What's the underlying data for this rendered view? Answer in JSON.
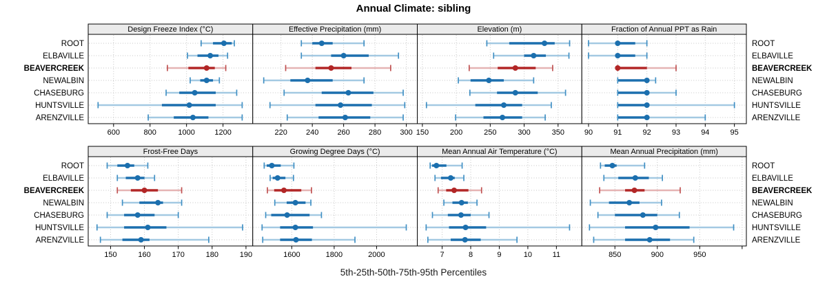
{
  "title": "Annual Climate: sibling",
  "caption": "5th-25th-50th-75th-95th Percentiles",
  "sites": [
    "ROOT",
    "ELBAVILLE",
    "BEAVERCREEK",
    "NEWALBIN",
    "CHASEBURG",
    "HUNTSVILLE",
    "ARENZVILLE"
  ],
  "highlighted_site": "BEAVERCREEK",
  "colors": {
    "series_dark": "#1b6fae",
    "series_mid": "#4190c4",
    "series_light": "#a3c9e2",
    "highlight_dark": "#b22626",
    "highlight_mid": "#c05252",
    "highlight_light": "#e5b3b3",
    "strip_bg": "#ebebeb",
    "panel_border": "#000000",
    "grid": "#c4c4c4",
    "text": "#000000"
  },
  "chart_data": {
    "type": "dotplot-intervals",
    "percentiles": [
      5,
      25,
      50,
      75,
      95
    ],
    "legend_note": "5th-25th-50th-75th-95th Percentiles",
    "panels": [
      {
        "title": "Design Freeze Index (°C)",
        "row": 0,
        "col": 0,
        "xlim": [
          461,
          1363
        ],
        "ticks": [
          600,
          800,
          1000,
          1200
        ],
        "unlabeled_ticks": [],
        "series": [
          {
            "site": "ROOT",
            "values": [
              1080,
              1145,
              1205,
              1248,
              1262
            ]
          },
          {
            "site": "ELBAVILLE",
            "values": [
              1005,
              1060,
              1130,
              1175,
              1225
            ]
          },
          {
            "site": "BEAVERCREEK",
            "values": [
              895,
              1010,
              1110,
              1155,
              1215
            ]
          },
          {
            "site": "NEWALBIN",
            "values": [
              1020,
              1075,
              1110,
              1145,
              1180
            ]
          },
          {
            "site": "CHASEBURG",
            "values": [
              888,
              960,
              1045,
              1160,
              1275
            ]
          },
          {
            "site": "HUNTSVILLE",
            "values": [
              515,
              865,
              1015,
              1160,
              1305
            ]
          },
          {
            "site": "ARENZVILLE",
            "values": [
              790,
              930,
              1035,
              1120,
              1305
            ]
          }
        ]
      },
      {
        "title": "Effective Precipitation (mm)",
        "row": 0,
        "col": 1,
        "xlim": [
          202,
          307
        ],
        "ticks": [
          220,
          240,
          260,
          280,
          300
        ],
        "unlabeled_ticks": [],
        "series": [
          {
            "site": "ROOT",
            "values": [
              233,
              240,
              246,
              253,
              273
            ]
          },
          {
            "site": "ELBAVILLE",
            "values": [
              233,
              252,
              260,
              276,
              295
            ]
          },
          {
            "site": "BEAVERCREEK",
            "values": [
              223,
              242,
              252,
              265,
              290
            ]
          },
          {
            "site": "NEWALBIN",
            "values": [
              209,
              226,
              237,
              253,
              273
            ]
          },
          {
            "site": "CHASEBURG",
            "values": [
              222,
              246,
              263,
              279,
              298
            ]
          },
          {
            "site": "HUNTSVILLE",
            "values": [
              213,
              242,
              258,
              278,
              299
            ]
          },
          {
            "site": "ARENZVILLE",
            "values": [
              224,
              244,
              261,
              277,
              298
            ]
          }
        ]
      },
      {
        "title": "Elevation (m)",
        "row": 0,
        "col": 2,
        "xlim": [
          142.5,
          385
        ],
        "ticks": [
          150,
          200,
          250,
          300,
          350
        ],
        "unlabeled_ticks": [],
        "series": [
          {
            "site": "ROOT",
            "values": [
              245,
              278,
              330,
              345,
              367
            ]
          },
          {
            "site": "ELBAVILLE",
            "values": [
              255,
              300,
              314,
              332,
              366
            ]
          },
          {
            "site": "BEAVERCREEK",
            "values": [
              219,
              261,
              287,
              317,
              342
            ]
          },
          {
            "site": "NEWALBIN",
            "values": [
              203,
              221,
              248,
              270,
              314
            ]
          },
          {
            "site": "CHASEBURG",
            "values": [
              220,
              260,
              287,
              320,
              361
            ]
          },
          {
            "site": "HUNTSVILLE",
            "values": [
              156,
              228,
              270,
              297,
              340
            ]
          },
          {
            "site": "ARENZVILLE",
            "values": [
              199,
              240,
              268,
              297,
              331
            ]
          }
        ]
      },
      {
        "title": "Fraction of Annual PPT as Rain",
        "row": 0,
        "col": 3,
        "xlim": [
          89.77,
          95.41
        ],
        "ticks": [
          90,
          91,
          92,
          93,
          94,
          95
        ],
        "unlabeled_ticks": [],
        "series": [
          {
            "site": "ROOT",
            "values": [
              90,
              91,
              91,
              91.6,
              92
            ]
          },
          {
            "site": "ELBAVILLE",
            "values": [
              90,
              91,
              91,
              91.6,
              92
            ]
          },
          {
            "site": "BEAVERCREEK",
            "values": [
              91,
              91,
              91,
              92,
              93
            ]
          },
          {
            "site": "NEWALBIN",
            "values": [
              91,
              91,
              92,
              92,
              92.3
            ]
          },
          {
            "site": "CHASEBURG",
            "values": [
              91,
              91,
              92,
              92,
              93
            ]
          },
          {
            "site": "HUNTSVILLE",
            "values": [
              91,
              91,
              92,
              92,
              95
            ]
          },
          {
            "site": "ARENZVILLE",
            "values": [
              91,
              91,
              92,
              92,
              94
            ]
          }
        ]
      },
      {
        "title": "Frost-Free Days",
        "row": 1,
        "col": 0,
        "xlim": [
          143.4,
          192
        ],
        "ticks": [
          150,
          160,
          170,
          180,
          190
        ],
        "unlabeled_ticks": [],
        "series": [
          {
            "site": "ROOT",
            "values": [
              149,
              152,
              155,
              157,
              161
            ]
          },
          {
            "site": "ELBAVILLE",
            "values": [
              152,
              154.5,
              158,
              160,
              163
            ]
          },
          {
            "site": "BEAVERCREEK",
            "values": [
              152,
              156,
              160,
              164,
              171
            ]
          },
          {
            "site": "NEWALBIN",
            "values": [
              153.5,
              158.5,
              164,
              165.5,
              171
            ]
          },
          {
            "site": "CHASEBURG",
            "values": [
              149,
              154,
              158,
              163,
              170
            ]
          },
          {
            "site": "HUNTSVILLE",
            "values": [
              146,
              154,
              161,
              166.5,
              189
            ]
          },
          {
            "site": "ARENZVILLE",
            "values": [
              147,
              153.5,
              159,
              161.5,
              179
            ]
          }
        ]
      },
      {
        "title": "Growing Degree Days (°C)",
        "row": 1,
        "col": 1,
        "xlim": [
          1416,
          2192
        ],
        "ticks": [
          1600,
          1800,
          2000
        ],
        "unlabeled_ticks": [],
        "series": [
          {
            "site": "ROOT",
            "values": [
              1470,
              1482,
              1506,
              1548,
              1610
            ]
          },
          {
            "site": "ELBAVILLE",
            "values": [
              1498,
              1510,
              1533,
              1570,
              1608
            ]
          },
          {
            "site": "BEAVERCREEK",
            "values": [
              1485,
              1517,
              1563,
              1645,
              1693
            ]
          },
          {
            "site": "NEWALBIN",
            "values": [
              1520,
              1576,
              1617,
              1665,
              1690
            ]
          },
          {
            "site": "CHASEBURG",
            "values": [
              1477,
              1503,
              1578,
              1684,
              1740
            ]
          },
          {
            "site": "HUNTSVILLE",
            "values": [
              1460,
              1545,
              1617,
              1700,
              2140
            ]
          },
          {
            "site": "ARENZVILLE",
            "values": [
              1463,
              1545,
              1620,
              1695,
              1898
            ]
          }
        ]
      },
      {
        "title": "Mean Annual Air Temperature (°C)",
        "row": 1,
        "col": 2,
        "xlim": [
          6.13,
          11.89
        ],
        "ticks": [
          7,
          8,
          9,
          10,
          11
        ],
        "unlabeled_ticks": [],
        "series": [
          {
            "site": "ROOT",
            "values": [
              6.58,
              6.65,
              6.8,
              7.15,
              7.7
            ]
          },
          {
            "site": "ELBAVILLE",
            "values": [
              6.75,
              6.96,
              7.3,
              7.44,
              7.76
            ]
          },
          {
            "site": "BEAVERCREEK",
            "values": [
              6.86,
              7.14,
              7.42,
              7.92,
              8.38
            ]
          },
          {
            "site": "NEWALBIN",
            "values": [
              7.06,
              7.36,
              7.68,
              7.9,
              8.22
            ]
          },
          {
            "site": "CHASEBURG",
            "values": [
              6.66,
              7.2,
              7.66,
              8.0,
              8.64
            ]
          },
          {
            "site": "HUNTSVILLE",
            "values": [
              6.44,
              7.24,
              7.82,
              8.54,
              11.46
            ]
          },
          {
            "site": "ARENZVILLE",
            "values": [
              6.5,
              7.3,
              7.8,
              8.35,
              9.62
            ]
          }
        ]
      },
      {
        "title": "Mean Annual Precipitation (mm)",
        "row": 1,
        "col": 3,
        "xlim": [
          811,
          1005
        ],
        "ticks": [
          850,
          900,
          950
        ],
        "unlabeled_ticks": [
          1000
        ],
        "series": [
          {
            "site": "ROOT",
            "values": [
              833,
              838,
              847,
              852,
              885
            ]
          },
          {
            "site": "ELBAVILLE",
            "values": [
              837,
              854,
              874,
              890,
              906
            ]
          },
          {
            "site": "BEAVERCREEK",
            "values": [
              832,
              862,
              873,
              885,
              927
            ]
          },
          {
            "site": "NEWALBIN",
            "values": [
              821,
              843,
              867,
              879,
              905
            ]
          },
          {
            "site": "CHASEBURG",
            "values": [
              830,
              850,
              883,
              900,
              926
            ]
          },
          {
            "site": "HUNTSVILLE",
            "values": [
              820,
              862,
              898,
              938,
              990
            ]
          },
          {
            "site": "ARENZVILLE",
            "values": [
              825,
              862,
              891,
              915,
              943
            ]
          }
        ]
      }
    ]
  }
}
